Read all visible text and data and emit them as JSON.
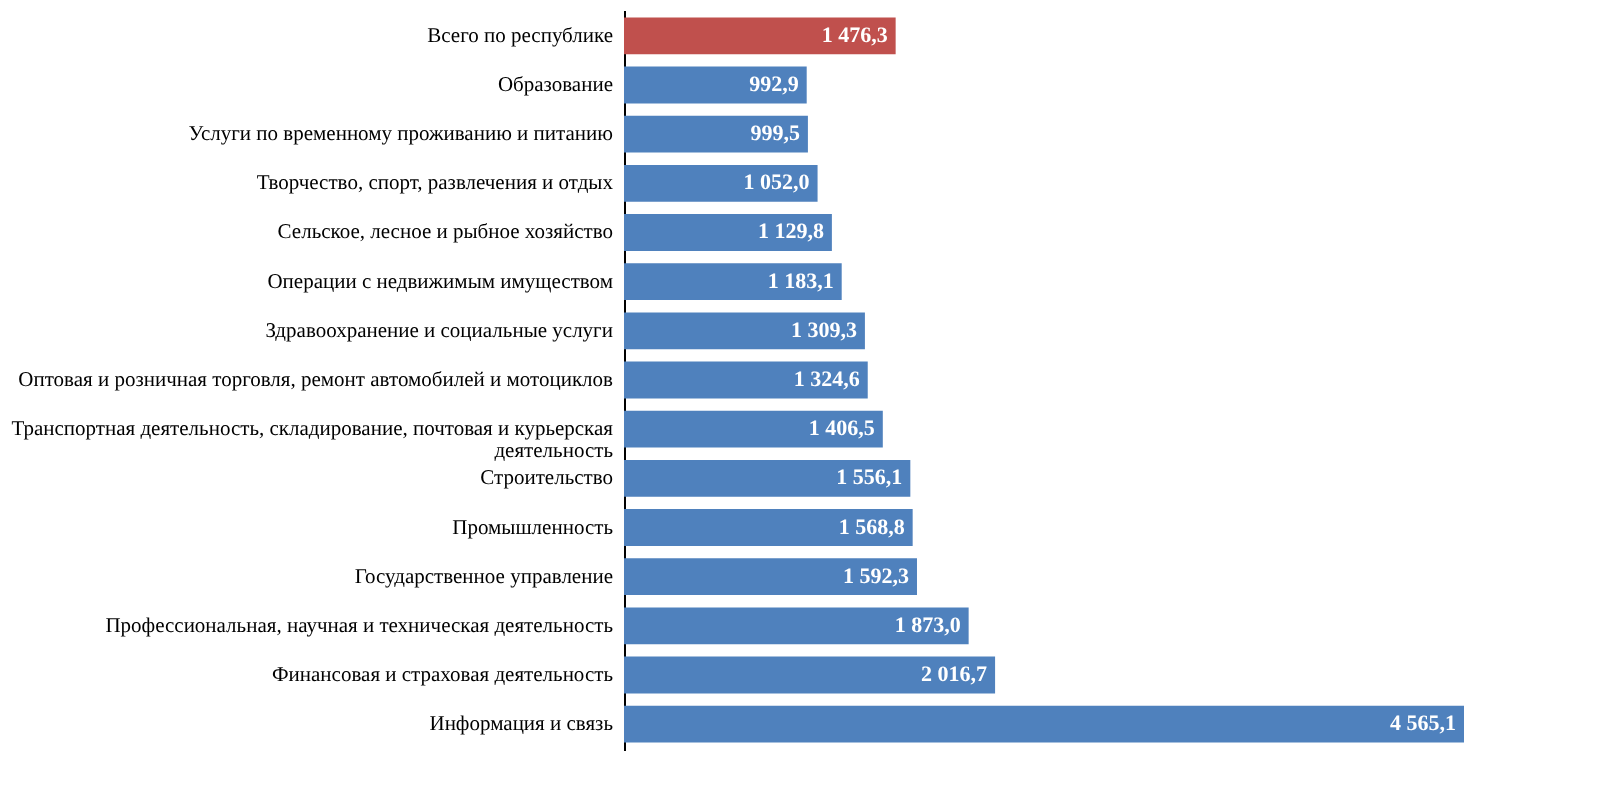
{
  "chart_data": {
    "type": "bar",
    "orientation": "horizontal",
    "categories": [
      "Всего по республике",
      "Образование",
      "Услуги по временному проживанию и питанию",
      "Творчество, спорт, развлечения и отдых",
      "Сельское, лесное и рыбное хозяйство",
      "Операции с  недвижимым имуществом",
      "Здравоохранение и социальные услуги",
      "Оптовая и розничная торговля, ремонт автомобилей и мотоциклов",
      "Транспортная деятельность, складирование, почтовая и курьерская деятельность",
      "Строительство",
      "Промышленность",
      "Государственное управление",
      "Профессиональная, научная и техническая деятельность",
      "Финансовая и страховая деятельность",
      "Информация и связь"
    ],
    "values": [
      1476.3,
      992.9,
      999.5,
      1052.0,
      1129.8,
      1183.1,
      1309.3,
      1324.6,
      1406.5,
      1556.1,
      1568.8,
      1592.3,
      1873.0,
      2016.7,
      4565.1
    ],
    "value_labels": [
      "1 476,3",
      "992,9",
      "999,5",
      "1 052,0",
      "1 129,8",
      "1 183,1",
      "1 309,3",
      "1 324,6",
      "1 406,5",
      "1 556,1",
      "1 568,8",
      "1 592,3",
      "1 873,0",
      "2 016,7",
      "4 565,1"
    ],
    "colors": [
      "#c0504d",
      "#4f81bd",
      "#4f81bd",
      "#4f81bd",
      "#4f81bd",
      "#4f81bd",
      "#4f81bd",
      "#4f81bd",
      "#4f81bd",
      "#4f81bd",
      "#4f81bd",
      "#4f81bd",
      "#4f81bd",
      "#4f81bd",
      "#4f81bd"
    ],
    "grid": false
  }
}
